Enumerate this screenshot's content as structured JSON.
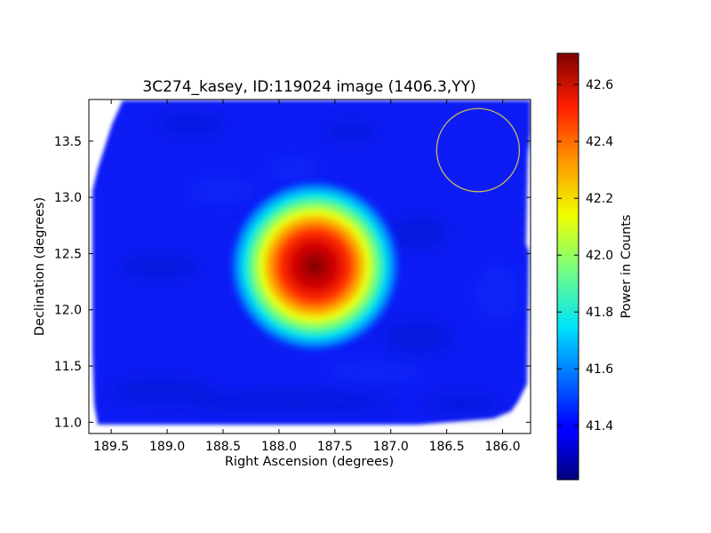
{
  "chart_data": {
    "type": "heatmap",
    "title": "3C274_kasey, ID:119024 image (1406.3,YY)",
    "xlabel": "Right Ascension (degrees)",
    "ylabel": "Declination (degrees)",
    "xlim": [
      189.7,
      185.75
    ],
    "ylim": [
      10.9,
      13.87
    ],
    "x_ticks": [
      "189.5",
      "189.0",
      "188.5",
      "188.0",
      "187.5",
      "187.0",
      "186.5",
      "186.0"
    ],
    "y_ticks": [
      "11.0",
      "11.5",
      "12.0",
      "12.5",
      "13.0",
      "13.5"
    ],
    "x_tick_values": [
      189.5,
      189.0,
      188.5,
      188.0,
      187.5,
      187.0,
      186.5,
      186.0
    ],
    "y_tick_values": [
      11.0,
      11.5,
      12.0,
      12.5,
      13.0,
      13.5
    ],
    "colorbar": {
      "label": "Power in Counts",
      "range": [
        41.21,
        42.71
      ],
      "ticks": [
        "41.4",
        "41.6",
        "41.8",
        "42.0",
        "42.2",
        "42.4",
        "42.6"
      ],
      "tick_values": [
        41.4,
        41.6,
        41.8,
        42.0,
        42.2,
        42.4,
        42.6
      ],
      "colormap": "jet"
    },
    "background_level": 41.42,
    "source": {
      "ra": 187.68,
      "dec": 12.39,
      "peak": 42.71,
      "sigma_ra": 0.24,
      "sigma_dec": 0.24
    },
    "beam_circle": {
      "ra": 186.22,
      "dec": 13.42,
      "radius_deg": 0.37,
      "color": "#c8b85a"
    },
    "grid": false
  }
}
